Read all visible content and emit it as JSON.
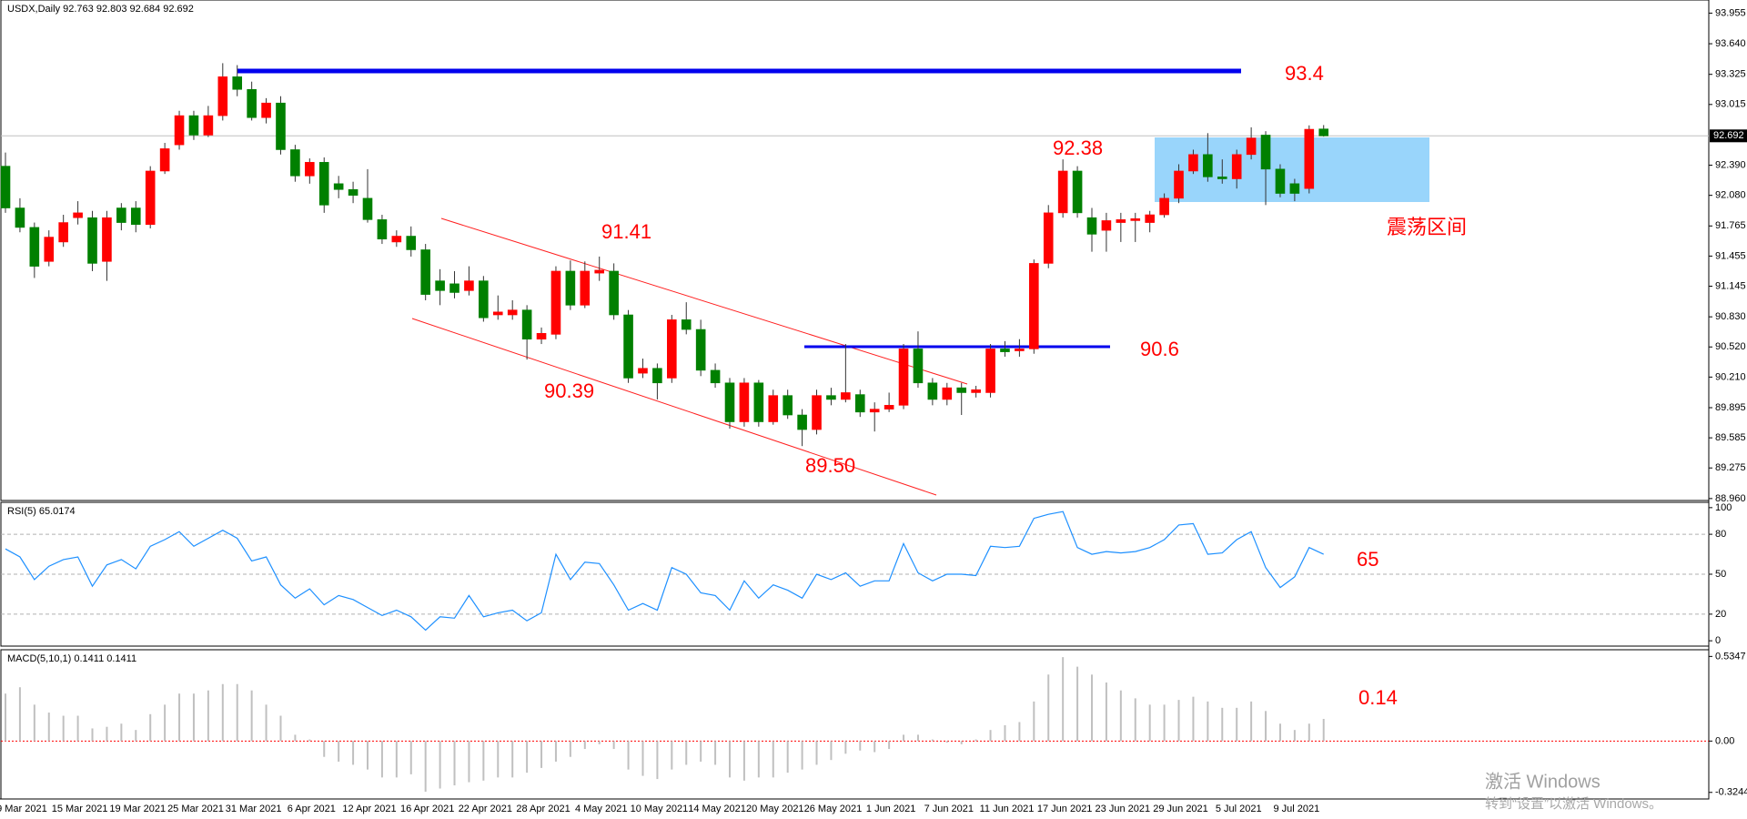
{
  "chart_data": [
    {
      "type": "candlestick",
      "title": "USDX,Daily  92.763 92.803 92.684 92.692",
      "categories": [
        null,
        "9 Mar 2021",
        null,
        null,
        null,
        "15 Mar 2021",
        null,
        null,
        null,
        "19 Mar 2021",
        null,
        null,
        null,
        "25 Mar 2021",
        null,
        null,
        null,
        "31 Mar 2021",
        null,
        null,
        null,
        "6 Apr 2021",
        null,
        null,
        null,
        "12 Apr 2021",
        null,
        null,
        null,
        "16 Apr 2021",
        null,
        null,
        null,
        "22 Apr 2021",
        null,
        null,
        null,
        "28 Apr 2021",
        null,
        null,
        null,
        "4 May 2021",
        null,
        null,
        null,
        "10 May 2021",
        null,
        null,
        null,
        "14 May 2021",
        null,
        null,
        null,
        "20 May 2021",
        null,
        null,
        null,
        "26 May 2021",
        null,
        null,
        null,
        "1 Jun 2021",
        null,
        null,
        null,
        "7 Jun 2021",
        null,
        null,
        null,
        "11 Jun 2021",
        null,
        null,
        null,
        "17 Jun 2021",
        null,
        null,
        null,
        "23 Jun 2021",
        null,
        null,
        null,
        "29 Jun 2021",
        null,
        null,
        null,
        "5 Jul 2021",
        null,
        null,
        null,
        "9 Jul 2021",
        null,
        null
      ],
      "open": [
        92.38,
        91.95,
        91.75,
        91.4,
        91.6,
        91.85,
        91.85,
        91.4,
        91.95,
        91.95,
        91.78,
        92.33,
        92.6,
        92.9,
        92.7,
        92.9,
        93.3,
        93.17,
        92.88,
        93.03,
        92.55,
        92.28,
        92.42,
        92.2,
        92.14,
        92.05,
        91.83,
        91.6,
        91.66,
        91.52,
        91.2,
        91.17,
        91.1,
        91.2,
        90.85,
        90.85,
        90.9,
        90.6,
        90.65,
        91.3,
        90.95,
        91.28,
        91.3,
        90.85,
        90.25,
        90.3,
        90.2,
        90.8,
        90.7,
        90.28,
        90.15,
        89.75,
        90.15,
        89.75,
        90.02,
        89.82,
        89.67,
        90.02,
        89.98,
        90.03,
        89.85,
        89.88,
        89.92,
        90.5,
        90.15,
        89.98,
        90.1,
        90.05,
        90.05,
        90.5,
        90.48,
        90.5,
        91.38,
        91.9,
        92.33,
        91.85,
        91.72,
        91.8,
        91.82,
        91.8,
        91.88,
        92.05,
        92.33,
        92.5,
        92.27,
        92.25,
        92.5,
        92.7,
        92.35,
        92.2,
        92.15,
        92.763
      ],
      "high": [
        92.52,
        92.05,
        91.8,
        91.72,
        91.88,
        92.02,
        91.92,
        91.92,
        92.0,
        92.02,
        92.38,
        92.62,
        92.95,
        92.95,
        93.0,
        93.44,
        93.42,
        93.25,
        93.08,
        93.1,
        92.6,
        92.46,
        92.47,
        92.28,
        92.22,
        92.35,
        91.88,
        91.72,
        91.76,
        91.58,
        91.32,
        91.3,
        91.35,
        91.25,
        91.05,
        91.0,
        90.95,
        90.72,
        91.35,
        91.41,
        91.4,
        91.45,
        91.38,
        90.9,
        90.4,
        90.35,
        90.85,
        90.98,
        90.8,
        90.35,
        90.2,
        90.2,
        90.18,
        90.08,
        90.08,
        89.88,
        90.08,
        90.1,
        90.55,
        90.08,
        89.95,
        90.05,
        90.55,
        90.68,
        90.2,
        90.15,
        90.15,
        90.12,
        90.55,
        90.58,
        90.6,
        91.42,
        91.98,
        92.45,
        92.38,
        91.95,
        91.9,
        91.9,
        91.9,
        91.92,
        92.1,
        92.4,
        92.55,
        92.72,
        92.45,
        92.55,
        92.78,
        92.74,
        92.4,
        92.25,
        92.8,
        92.803
      ],
      "low": [
        91.9,
        91.7,
        91.23,
        91.35,
        91.55,
        91.78,
        91.3,
        91.2,
        91.72,
        91.7,
        91.74,
        92.3,
        92.55,
        92.65,
        92.68,
        92.85,
        93.1,
        92.85,
        92.82,
        92.5,
        92.22,
        92.2,
        91.9,
        92.05,
        92.0,
        91.8,
        91.58,
        91.55,
        91.45,
        91.0,
        90.95,
        91.02,
        91.05,
        90.78,
        90.8,
        90.8,
        90.39,
        90.55,
        90.6,
        90.9,
        90.92,
        91.2,
        90.8,
        90.15,
        90.2,
        89.98,
        90.15,
        90.65,
        90.22,
        90.1,
        89.68,
        89.7,
        89.7,
        89.72,
        89.78,
        89.5,
        89.62,
        89.92,
        89.95,
        89.8,
        89.65,
        89.85,
        89.88,
        90.1,
        89.92,
        89.92,
        89.82,
        90.0,
        90.0,
        90.42,
        90.42,
        90.45,
        91.33,
        91.85,
        91.85,
        91.5,
        91.5,
        91.6,
        91.6,
        91.7,
        91.85,
        92.0,
        92.3,
        92.22,
        92.2,
        92.15,
        92.45,
        91.98,
        92.06,
        92.02,
        92.1,
        92.684
      ],
      "close": [
        91.95,
        91.75,
        91.35,
        91.65,
        91.8,
        91.9,
        91.38,
        91.85,
        91.8,
        91.78,
        92.33,
        92.56,
        92.9,
        92.7,
        92.9,
        93.3,
        93.17,
        92.88,
        93.03,
        92.55,
        92.28,
        92.42,
        91.98,
        92.14,
        92.08,
        91.83,
        91.63,
        91.66,
        91.52,
        91.06,
        91.1,
        91.08,
        91.2,
        90.82,
        90.88,
        90.9,
        90.6,
        90.66,
        91.3,
        90.95,
        91.3,
        91.31,
        90.85,
        90.2,
        90.3,
        90.15,
        90.8,
        90.7,
        90.28,
        90.15,
        89.75,
        90.15,
        89.75,
        90.02,
        89.82,
        89.67,
        90.02,
        89.98,
        90.05,
        89.85,
        89.88,
        89.92,
        90.5,
        90.15,
        89.98,
        90.1,
        90.05,
        90.08,
        90.5,
        90.47,
        90.5,
        91.38,
        91.9,
        92.33,
        91.9,
        91.68,
        91.82,
        91.83,
        91.84,
        91.88,
        92.05,
        92.33,
        92.5,
        92.27,
        92.25,
        92.5,
        92.67,
        92.35,
        92.1,
        92.1,
        92.76,
        92.692
      ],
      "up_color": "#ff0000",
      "down_color": "#008000",
      "wick_color": "#333333",
      "ylim": [
        88.94,
        94.09
      ],
      "yticks": [
        93.955,
        {
          "value": 93.64,
          "label": "93.640"
        },
        93.325,
        93.015,
        {
          "value": 92.39,
          "label": "92.390"
        },
        {
          "value": 92.08,
          "label": "92.080"
        },
        91.765,
        91.455,
        91.145,
        {
          "value": 90.83,
          "label": "90.830"
        },
        {
          "value": 90.52,
          "label": "90.520"
        },
        {
          "value": 90.21,
          "label": "90.210"
        },
        89.895,
        89.585,
        89.275,
        {
          "value": 88.96,
          "label": "88.960"
        }
      ],
      "last_price": 92.692,
      "annotations": [
        "93.4",
        "92.38",
        "91.41",
        "90.39",
        "89.50",
        "90.6",
        "震荡区间"
      ]
    },
    {
      "type": "line",
      "title": "RSI(5) 65.0174",
      "color": "#1e90ff",
      "values": [
        69,
        63,
        46,
        56,
        61,
        63,
        41,
        57,
        61,
        54,
        71,
        76,
        82,
        71,
        77,
        83,
        77,
        60,
        63,
        42,
        32,
        39,
        27,
        34,
        31,
        25,
        19,
        23,
        18,
        8,
        18,
        17,
        34,
        18,
        21,
        23,
        15,
        21,
        65,
        46,
        59,
        58,
        42,
        23,
        28,
        23,
        55,
        50,
        36,
        34,
        23,
        45,
        32,
        42,
        38,
        32,
        50,
        46,
        51,
        41,
        45,
        45,
        73,
        51,
        45,
        50,
        50,
        49,
        71,
        70,
        71,
        92,
        95,
        97,
        70,
        65,
        67,
        66,
        67,
        70,
        76,
        87,
        88,
        65,
        66,
        76,
        82,
        55,
        40,
        48,
        70,
        65
      ],
      "ylim": [
        -4,
        104
      ],
      "yticks": [
        100,
        80,
        50,
        20,
        0
      ],
      "grid": "dashed",
      "annotations": [
        "65"
      ]
    },
    {
      "type": "bar",
      "title": "MACD(5,10,1) 0.1411 0.1411",
      "color": "#c0c0c0",
      "zero_line_color": "#ff0000",
      "values": [
        0.3,
        0.34,
        0.23,
        0.18,
        0.16,
        0.16,
        0.08,
        0.09,
        0.11,
        0.07,
        0.17,
        0.23,
        0.3,
        0.3,
        0.32,
        0.36,
        0.36,
        0.32,
        0.23,
        0.16,
        0.04,
        0.01,
        -0.1,
        -0.13,
        -0.15,
        -0.18,
        -0.23,
        -0.23,
        -0.21,
        -0.32,
        -0.3,
        -0.28,
        -0.26,
        -0.25,
        -0.23,
        -0.23,
        -0.2,
        -0.17,
        -0.13,
        -0.1,
        -0.05,
        -0.02,
        -0.05,
        -0.18,
        -0.22,
        -0.24,
        -0.18,
        -0.15,
        -0.13,
        -0.15,
        -0.23,
        -0.25,
        -0.23,
        -0.23,
        -0.2,
        -0.18,
        -0.15,
        -0.12,
        -0.08,
        -0.06,
        -0.07,
        -0.05,
        0.04,
        0.04,
        0.01,
        -0.01,
        -0.02,
        0.01,
        0.07,
        0.1,
        0.12,
        0.25,
        0.42,
        0.53,
        0.47,
        0.42,
        0.37,
        0.32,
        0.27,
        0.23,
        0.23,
        0.26,
        0.28,
        0.25,
        0.21,
        0.21,
        0.25,
        0.19,
        0.11,
        0.07,
        0.11,
        0.14
      ],
      "ylim": [
        -0.366,
        0.577
      ],
      "yticks": [
        0.5347,
        {
          "value": 0,
          "label": "0.00"
        },
        -0.3244
      ],
      "annotations": [
        "0.14"
      ]
    }
  ],
  "watermark": {
    "title": "激活 Windows",
    "subtitle": "转到“设置”以激活 Windows。"
  }
}
